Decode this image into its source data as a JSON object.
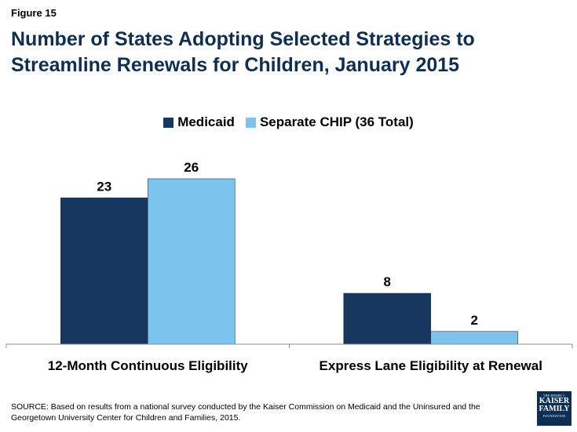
{
  "figure_label": "Figure 15",
  "title": "Number of States Adopting Selected Strategies to Streamline Renewals for Children, January 2015",
  "chart_data": {
    "type": "bar",
    "categories": [
      "12-Month Continuous Eligibility",
      "Express Lane Eligibility at Renewal"
    ],
    "series": [
      {
        "name": "Medicaid",
        "values": [
          23,
          8
        ],
        "color": "#17375e"
      },
      {
        "name": "Separate CHIP (36 Total)",
        "values": [
          26,
          2
        ],
        "color": "#7cc4ed"
      }
    ],
    "ylim": [
      0,
      30
    ],
    "xlabel": "",
    "ylabel": "",
    "legend": "top-center",
    "grid": false
  },
  "source": "SOURCE: Based on results from a national survey conducted by the Kaiser Commission on Medicaid and the Uninsured and the Georgetown University Center for Children and Families, 2015.",
  "logo": {
    "top": "THE HENRY J.",
    "line1": "KAISER",
    "line2": "FAMILY",
    "bottom": "FOUNDATION"
  }
}
